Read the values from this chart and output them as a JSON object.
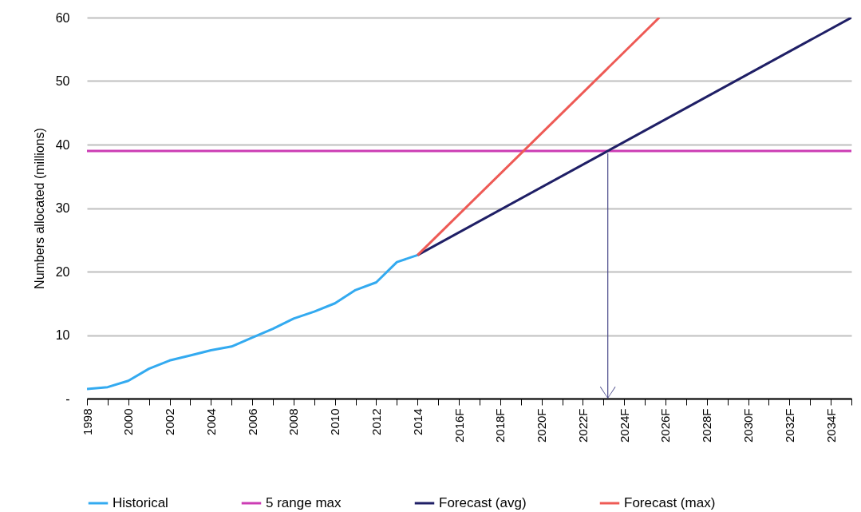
{
  "chart_data": {
    "type": "line",
    "ylabel": "Numbers allocated (millions)",
    "xlim": [
      1998,
      2035
    ],
    "ylim": [
      0,
      60
    ],
    "xticks": [
      1998,
      {
        "value": 1999,
        "label": null
      },
      2000,
      {
        "value": 2001,
        "label": null
      },
      2002,
      {
        "value": 2003,
        "label": null
      },
      2004,
      {
        "value": 2005,
        "label": null
      },
      2006,
      {
        "value": 2007,
        "label": null
      },
      2008,
      {
        "value": 2009,
        "label": null
      },
      2010,
      {
        "value": 2011,
        "label": null
      },
      2012,
      {
        "value": 2013,
        "label": null
      },
      2014,
      {
        "value": 2015,
        "label": null
      },
      {
        "value": 2016,
        "label": "2016F"
      },
      {
        "value": 2017,
        "label": null
      },
      {
        "value": 2018,
        "label": "2018F"
      },
      {
        "value": 2019,
        "label": null
      },
      {
        "value": 2020,
        "label": "2020F"
      },
      {
        "value": 2021,
        "label": null
      },
      {
        "value": 2022,
        "label": "2022F"
      },
      {
        "value": 2023,
        "label": null
      },
      {
        "value": 2024,
        "label": "2024F"
      },
      {
        "value": 2025,
        "label": null
      },
      {
        "value": 2026,
        "label": "2026F"
      },
      {
        "value": 2027,
        "label": null
      },
      {
        "value": 2028,
        "label": "2028F"
      },
      {
        "value": 2029,
        "label": null
      },
      {
        "value": 2030,
        "label": "2030F"
      },
      {
        "value": 2031,
        "label": null
      },
      {
        "value": 2032,
        "label": "2032F"
      },
      {
        "value": 2033,
        "label": null
      },
      {
        "value": 2034,
        "label": "2034F"
      },
      {
        "value": 2035,
        "label": null
      }
    ],
    "yticks": [
      {
        "value": 0,
        "label": "-"
      },
      10,
      20,
      30,
      40,
      50,
      60
    ],
    "grid": "y",
    "legend": "bottom",
    "marker": "none",
    "line_style": "solid",
    "series": [
      {
        "name": "Historical",
        "color": "#33aaf0",
        "x": [
          1998,
          1999,
          2000,
          2001,
          2002,
          2003,
          2004,
          2005,
          2006,
          2007,
          2008,
          2009,
          2010,
          2011,
          2012,
          2013,
          2014
        ],
        "values": [
          1.5,
          1.8,
          2.8,
          4.7,
          6.0,
          6.8,
          7.6,
          8.2,
          9.6,
          11.0,
          12.6,
          13.7,
          15.0,
          17.1,
          18.3,
          21.5,
          22.6
        ]
      },
      {
        "name": "5 range max",
        "color": "#cc3cb4",
        "x": [
          1998,
          2035
        ],
        "values": [
          39,
          39
        ]
      },
      {
        "name": "Forecast (avg)",
        "color": "#1f1f66",
        "x": [
          2014,
          2035
        ],
        "values": [
          22.6,
          60
        ]
      },
      {
        "name": "Forecast (max)",
        "color": "#ee5a55",
        "x": [
          2014,
          2025.7
        ],
        "values": [
          22.6,
          60
        ]
      }
    ]
  }
}
